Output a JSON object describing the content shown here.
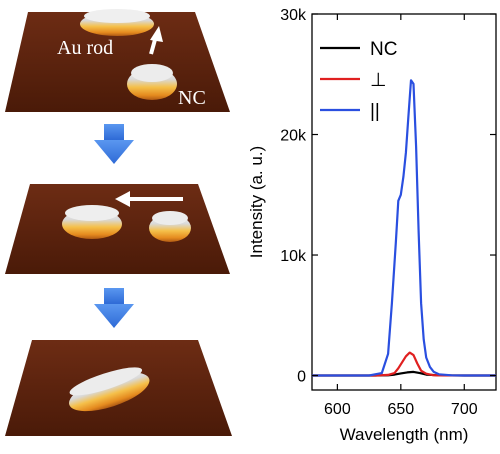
{
  "panels": {
    "top": {
      "labels": {
        "rod": "Au rod",
        "nc": "NC"
      }
    }
  },
  "colors": {
    "plane_dark": "#5a2410",
    "plane_mid": "#7a3418",
    "arrow_blue": "#3f7ee0",
    "white_arrow": "#ffffff"
  },
  "chart_data": {
    "type": "line",
    "title": "",
    "xlabel": "Wavelength (nm)",
    "ylabel": "Intensity (a. u.)",
    "xlim": [
      580,
      725
    ],
    "ylim": [
      -1200,
      30000
    ],
    "xticks": [
      600,
      650,
      700
    ],
    "yticks": [
      0,
      10000,
      20000,
      30000
    ],
    "xtick_labels": [
      "600",
      "650",
      "700"
    ],
    "ytick_labels": [
      "0",
      "10k",
      "20k",
      "30k"
    ],
    "legend": {
      "placement": "top-left"
    },
    "series": [
      {
        "name": "NC",
        "color": "#000000",
        "x": [
          580,
          630,
          640,
          645,
          650,
          655,
          660,
          665,
          670,
          680,
          700,
          725
        ],
        "y": [
          0,
          0,
          20,
          80,
          180,
          260,
          300,
          200,
          80,
          20,
          0,
          0
        ]
      },
      {
        "name": "⊥",
        "color": "#e02020",
        "x": [
          580,
          630,
          640,
          645,
          648,
          651,
          654,
          657,
          660,
          663,
          666,
          670,
          675,
          680,
          700,
          725
        ],
        "y": [
          0,
          0,
          50,
          200,
          600,
          1100,
          1600,
          1900,
          1700,
          1000,
          400,
          150,
          40,
          10,
          0,
          0
        ]
      },
      {
        "name": "||",
        "color": "#2a4fe0",
        "x": [
          580,
          625,
          635,
          640,
          643,
          646,
          648,
          650,
          652,
          654,
          656,
          658,
          660,
          662,
          664,
          666,
          668,
          670,
          673,
          676,
          680,
          690,
          700,
          725
        ],
        "y": [
          0,
          0,
          200,
          1800,
          6000,
          11000,
          14500,
          15000,
          16500,
          18500,
          21500,
          24500,
          24200,
          19000,
          12000,
          6000,
          3000,
          1500,
          700,
          300,
          100,
          20,
          0,
          0
        ]
      }
    ]
  }
}
